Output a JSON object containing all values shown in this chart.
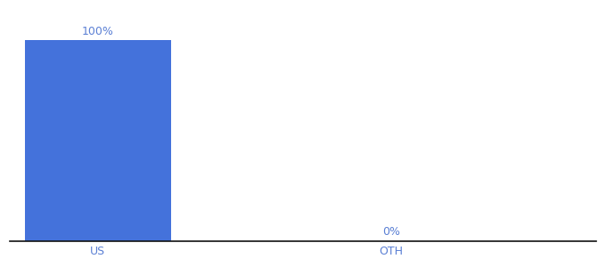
{
  "categories": [
    "US",
    "OTH"
  ],
  "values": [
    100,
    0
  ],
  "bar_color": "#4472db",
  "bar_width": 0.5,
  "label_fontsize": 9,
  "tick_fontsize": 9,
  "label_color": "#5a7fd4",
  "tick_color": "#5a7fd4",
  "background_color": "#ffffff",
  "ylim": [
    0,
    115
  ],
  "xlim": [
    -0.3,
    1.7
  ]
}
